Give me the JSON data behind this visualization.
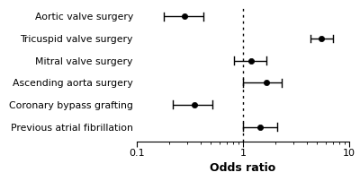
{
  "categories": [
    "Aortic valve surgery",
    "Tricuspid valve surgery",
    "Mitral valve surgery",
    "Ascending aorta surgery",
    "Coronary bypass grafting",
    "Previous atrial fibrillation"
  ],
  "or": [
    0.28,
    5.5,
    1.2,
    1.65,
    0.35,
    1.45
  ],
  "ci_low": [
    0.18,
    4.3,
    0.82,
    1.0,
    0.22,
    1.0
  ],
  "ci_high": [
    0.42,
    7.0,
    1.65,
    2.3,
    0.52,
    2.1
  ],
  "xlabel": "Odds ratio",
  "xlim_log": [
    0.1,
    10
  ],
  "xticks": [
    0.1,
    1,
    10
  ],
  "vline": 1.0,
  "point_color": "black",
  "point_size": 4.5,
  "line_color": "black",
  "line_width": 1.0,
  "background_color": "#ffffff",
  "xlabel_fontsize": 9,
  "label_fontsize": 7.8,
  "tick_labelsize": 8
}
